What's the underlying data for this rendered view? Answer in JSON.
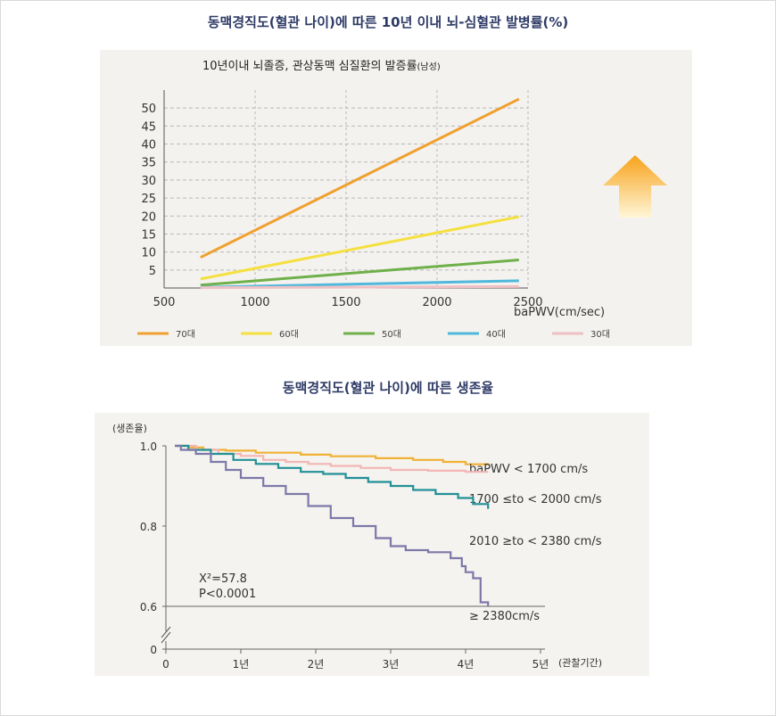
{
  "page": {
    "heading_top": "동맥경직도(혈관 나이)에 따른 10년 이내 뇌-심혈관 발병률(%)",
    "heading_bottom": "동맥경직도(혈관 나이)에 따른 생존율"
  },
  "colors": {
    "heading": "#2e3b66",
    "arrow_top": "#f7a21a",
    "arrow_bottom": "#fff6d8"
  },
  "icons": {
    "trend": "up-arrow-icon"
  },
  "chart_data": [
    {
      "type": "line",
      "title": "10년이내 뇌졸증, 관상동맥 심질환의 발증률",
      "title_suffix": "(남성)",
      "xlabel": "baPWV(cm/sec)",
      "ylabel": "",
      "xlim": [
        500,
        2500
      ],
      "ylim": [
        0,
        55
      ],
      "xticks": [
        500,
        1000,
        1500,
        2000,
        2500
      ],
      "yticks": [
        5,
        10,
        15,
        20,
        25,
        30,
        35,
        40,
        45,
        50
      ],
      "grid": true,
      "legend_position": "bottom",
      "series": [
        {
          "name": "70대",
          "color": "#f0a030",
          "x": [
            700,
            2450
          ],
          "y": [
            8.5,
            52.5
          ]
        },
        {
          "name": "60대",
          "color": "#f5e040",
          "x": [
            700,
            2450
          ],
          "y": [
            2.5,
            19.8
          ]
        },
        {
          "name": "50대",
          "color": "#6fb04a",
          "x": [
            700,
            2450
          ],
          "y": [
            0.8,
            7.8
          ]
        },
        {
          "name": "40대",
          "color": "#4fb8dc",
          "x": [
            700,
            2450
          ],
          "y": [
            0.2,
            2.0
          ]
        },
        {
          "name": "30대",
          "color": "#efc0c4",
          "x": [
            700,
            2450
          ],
          "y": [
            0.1,
            0.4
          ]
        }
      ]
    },
    {
      "type": "line",
      "title": "",
      "xlabel": "(관찰기간)",
      "ylabel": "(생존율)",
      "xlim": [
        0,
        5
      ],
      "ylim": [
        0,
        1.0
      ],
      "xticks": [
        0,
        1,
        2,
        3,
        4,
        5
      ],
      "xtick_labels": [
        "0",
        "1년",
        "2년",
        "3년",
        "4년",
        "5년"
      ],
      "yticks": [
        0,
        0.6,
        0.8,
        1.0
      ],
      "ytick_labels": [
        "0",
        "0.6",
        "0.8",
        "1.0"
      ],
      "grid": false,
      "annotation": [
        "X²=57.8",
        "P<0.0001"
      ],
      "series": [
        {
          "name": "baPWV < 1700 cm/s",
          "color": "#f1b134",
          "x": [
            0.12,
            0.3,
            0.5,
            0.8,
            1.2,
            1.8,
            2.2,
            2.8,
            3.3,
            3.7,
            4.0,
            4.3
          ],
          "y": [
            1.0,
            0.996,
            0.99,
            0.988,
            0.983,
            0.978,
            0.974,
            0.969,
            0.965,
            0.96,
            0.954,
            0.952
          ]
        },
        {
          "name": "1700 ≤to < 2000 cm/s",
          "color": "#f2b6b4",
          "x": [
            0.12,
            0.4,
            0.7,
            1.0,
            1.3,
            1.6,
            1.9,
            2.2,
            2.6,
            3.0,
            3.5,
            4.0,
            4.3
          ],
          "y": [
            1.0,
            0.99,
            0.98,
            0.975,
            0.965,
            0.96,
            0.955,
            0.95,
            0.945,
            0.94,
            0.938,
            0.935,
            0.935
          ]
        },
        {
          "name": "2010 ≥to < 2380 cm/s",
          "color": "#229097",
          "x": [
            0.12,
            0.3,
            0.6,
            0.9,
            1.2,
            1.5,
            1.8,
            2.1,
            2.4,
            2.7,
            3.0,
            3.3,
            3.6,
            3.9,
            4.1,
            4.3
          ],
          "y": [
            1.0,
            0.99,
            0.98,
            0.965,
            0.955,
            0.945,
            0.935,
            0.93,
            0.92,
            0.91,
            0.9,
            0.89,
            0.88,
            0.87,
            0.855,
            0.843
          ]
        },
        {
          "name": "≥ 2380cm/s",
          "color": "#7d78a8",
          "x": [
            0.12,
            0.2,
            0.4,
            0.6,
            0.8,
            1.0,
            1.3,
            1.6,
            1.9,
            2.2,
            2.5,
            2.8,
            3.0,
            3.2,
            3.5,
            3.8,
            3.95,
            4.0,
            4.1,
            4.2,
            4.3
          ],
          "y": [
            1.0,
            0.99,
            0.98,
            0.96,
            0.94,
            0.92,
            0.9,
            0.88,
            0.85,
            0.82,
            0.8,
            0.77,
            0.75,
            0.74,
            0.735,
            0.72,
            0.7,
            0.685,
            0.67,
            0.61,
            0.6
          ]
        }
      ]
    }
  ]
}
